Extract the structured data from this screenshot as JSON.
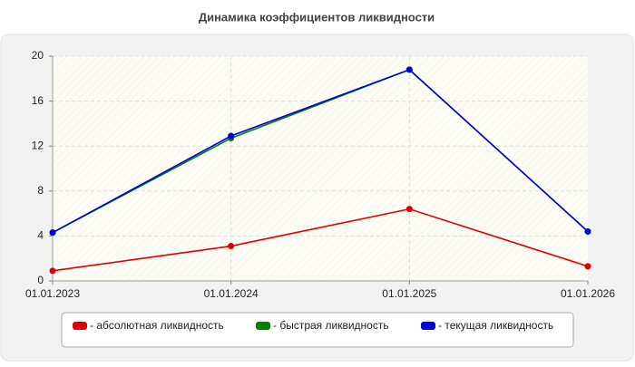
{
  "chart_data": {
    "type": "line",
    "title": "Динамика коэффициентов ликвидности",
    "categories": [
      "01.01.2023",
      "01.01.2024",
      "01.01.2025",
      "01.01.2026"
    ],
    "series": [
      {
        "name": "- абсолютная ликвидность",
        "color": "#e00000",
        "values": [
          0.9,
          3.1,
          6.4,
          1.3
        ]
      },
      {
        "name": "- быстрая ликвидность",
        "color": "#008000",
        "values": [
          4.3,
          12.7,
          18.8,
          4.4
        ]
      },
      {
        "name": "- текущая ликвидность",
        "color": "#0000dd",
        "values": [
          4.3,
          12.9,
          18.8,
          4.4
        ]
      }
    ],
    "ylim": [
      0,
      20
    ],
    "yticks": [
      0,
      4,
      8,
      12,
      16,
      20
    ],
    "grid": true
  }
}
